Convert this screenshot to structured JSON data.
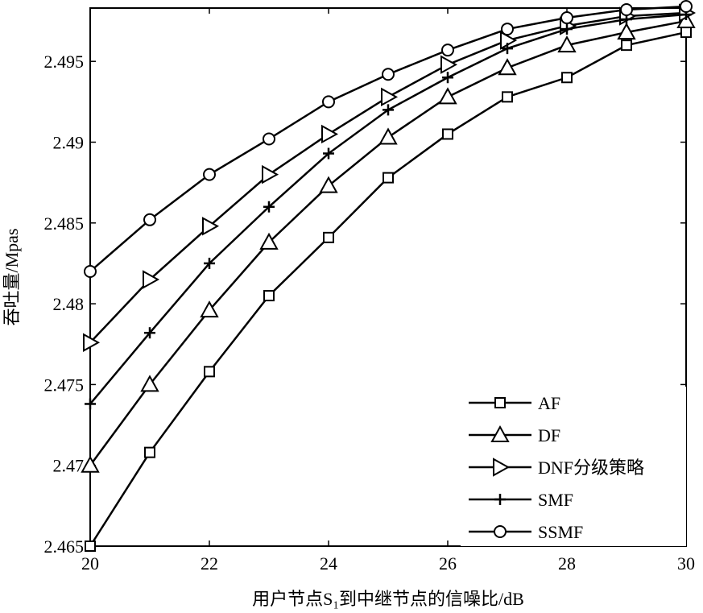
{
  "chart_data": {
    "type": "line",
    "xlabel": "用户节点S₁到中继节点的信噪比/dB",
    "ylabel": "吞吐量/Mpas",
    "x": [
      20,
      21,
      22,
      23,
      24,
      25,
      26,
      27,
      28,
      29,
      30
    ],
    "xlim": [
      20,
      30
    ],
    "ylim": [
      2.465,
      2.4983
    ],
    "xticks": [
      20,
      22,
      24,
      26,
      28,
      30
    ],
    "xtick_labels": [
      "20",
      "22",
      "24",
      "26",
      "28",
      "30"
    ],
    "yticks": [
      2.465,
      2.47,
      2.475,
      2.48,
      2.485,
      2.49,
      2.495
    ],
    "ytick_labels": [
      "2.465",
      "2.47",
      "2.475",
      "2.48",
      "2.485",
      "2.49",
      "2.495"
    ],
    "grid": false,
    "legend_position": "bottom-right",
    "series": [
      {
        "name": "AF",
        "marker": "square",
        "values": [
          2.465,
          2.4708,
          2.4758,
          2.4805,
          2.4841,
          2.4878,
          2.4905,
          2.4928,
          2.494,
          2.496,
          2.4968
        ]
      },
      {
        "name": "DF",
        "marker": "triangle-up",
        "values": [
          2.47,
          2.475,
          2.4796,
          2.4838,
          2.4873,
          2.4903,
          2.4928,
          2.4946,
          2.496,
          2.4968,
          2.4975
        ]
      },
      {
        "name": "DNF分级策略",
        "marker": "triangle-right",
        "values": [
          2.4776,
          2.4815,
          2.4848,
          2.488,
          2.4905,
          2.4928,
          2.4948,
          2.4963,
          2.4972,
          2.4978,
          2.498
        ]
      },
      {
        "name": "SMF",
        "marker": "plus",
        "values": [
          2.4738,
          2.4782,
          2.4825,
          2.486,
          2.4893,
          2.492,
          2.494,
          2.4958,
          2.497,
          2.4976,
          2.4979
        ]
      },
      {
        "name": "SSMF",
        "marker": "circle",
        "values": [
          2.482,
          2.4852,
          2.488,
          2.4902,
          2.4925,
          2.4942,
          2.4957,
          2.497,
          2.4977,
          2.4982,
          2.4984
        ]
      }
    ]
  }
}
